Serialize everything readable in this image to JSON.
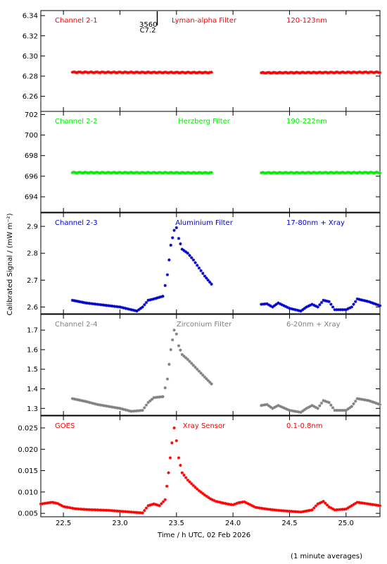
{
  "figure": {
    "ylabel": "Calibrated Signal / (mW m⁻²)",
    "xlabel": "Time / h UTC, 02 Feb 2026",
    "footnote": "(1 minute averages)",
    "marker": {
      "text": "3560",
      "subtext": "C7.2",
      "x": 23.33
    }
  },
  "chart_data": [
    {
      "type": "scatter",
      "channel": "Channel 2-1",
      "filter": "Lyman-alpha Filter",
      "band": "120-123nm",
      "color": "#ff0000",
      "ylim": [
        6.245,
        6.345
      ],
      "yticks": [
        "6.26",
        "6.28",
        "6.30",
        "6.32",
        "6.34"
      ],
      "xlim": [
        22.3,
        25.3
      ],
      "series": [
        {
          "x_start": 22.58,
          "x_end": 23.81,
          "y_start": 6.2838,
          "y_end": 6.2835
        },
        {
          "x_start": 24.25,
          "x_end": 25.3,
          "y_start": 6.2833,
          "y_end": 6.2838
        }
      ]
    },
    {
      "type": "scatter",
      "channel": "Channel 2-2",
      "filter": "Herzberg Filter",
      "band": "190-222nm",
      "color": "#00ee00",
      "ylim": [
        692.5,
        702.3
      ],
      "yticks": [
        "694",
        "696",
        "698",
        "700",
        "702"
      ],
      "xlim": [
        22.3,
        25.3
      ],
      "series": [
        {
          "x_start": 22.58,
          "x_end": 23.81,
          "y_start": 696.35,
          "y_end": 696.33
        },
        {
          "x_start": 24.25,
          "x_end": 25.3,
          "y_start": 696.33,
          "y_end": 696.35
        }
      ]
    },
    {
      "type": "scatter",
      "channel": "Channel 2-3",
      "filter": "Aluminium Filter",
      "band": "17-80nm + Xray",
      "color": "#0000cc",
      "ylim": [
        2.575,
        2.95
      ],
      "yticks": [
        "2.6",
        "2.7",
        "2.8",
        "2.9"
      ],
      "xlim": [
        22.3,
        25.3
      ],
      "x": [
        22.58,
        22.7,
        22.8,
        22.9,
        23.0,
        23.1,
        23.15,
        23.2,
        23.25,
        23.3,
        23.38,
        23.42,
        23.45,
        23.48,
        23.5,
        23.52,
        23.55,
        23.6,
        23.65,
        23.7,
        23.75,
        23.81,
        24.25,
        24.3,
        24.35,
        24.4,
        24.5,
        24.6,
        24.65,
        24.7,
        24.75,
        24.8,
        24.85,
        24.9,
        25.0,
        25.05,
        25.1,
        25.2,
        25.3
      ],
      "y": [
        2.625,
        2.615,
        2.61,
        2.605,
        2.6,
        2.59,
        2.585,
        2.6,
        2.625,
        2.63,
        2.64,
        2.72,
        2.83,
        2.885,
        2.895,
        2.855,
        2.815,
        2.8,
        2.775,
        2.745,
        2.715,
        2.685,
        2.61,
        2.612,
        2.6,
        2.615,
        2.595,
        2.585,
        2.6,
        2.61,
        2.6,
        2.625,
        2.62,
        2.59,
        2.59,
        2.6,
        2.63,
        2.62,
        2.605
      ]
    },
    {
      "type": "scatter",
      "channel": "Channel 2-4",
      "filter": "Zirconium Filter",
      "band": "6-20nm + Xray",
      "color": "#808080",
      "ylim": [
        1.265,
        1.78
      ],
      "yticks": [
        "1.3",
        "1.4",
        "1.5",
        "1.6",
        "1.7"
      ],
      "xlim": [
        22.3,
        25.3
      ],
      "x": [
        22.58,
        22.7,
        22.8,
        22.9,
        23.0,
        23.1,
        23.2,
        23.25,
        23.3,
        23.38,
        23.42,
        23.45,
        23.48,
        23.5,
        23.52,
        23.55,
        23.6,
        23.65,
        23.7,
        23.75,
        23.81,
        24.25,
        24.3,
        24.35,
        24.4,
        24.5,
        24.6,
        24.65,
        24.7,
        24.75,
        24.8,
        24.85,
        24.9,
        25.0,
        25.05,
        25.1,
        25.2,
        25.3
      ],
      "y": [
        1.35,
        1.335,
        1.32,
        1.31,
        1.3,
        1.285,
        1.29,
        1.33,
        1.355,
        1.36,
        1.45,
        1.6,
        1.7,
        1.68,
        1.62,
        1.575,
        1.55,
        1.52,
        1.49,
        1.46,
        1.425,
        1.315,
        1.32,
        1.3,
        1.315,
        1.29,
        1.28,
        1.3,
        1.315,
        1.3,
        1.34,
        1.33,
        1.29,
        1.29,
        1.31,
        1.35,
        1.34,
        1.32
      ]
    },
    {
      "type": "scatter",
      "channel": "GOES",
      "filter": "Xray Sensor",
      "band": "0.1-0.8nm",
      "color": "#ff0000",
      "ylim": [
        0.0042,
        0.0278
      ],
      "yticks": [
        "0.005",
        "0.010",
        "0.015",
        "0.020",
        "0.025"
      ],
      "xtick_values": [
        22.5,
        23.0,
        23.5,
        24.0,
        24.5,
        25.0
      ],
      "xticks": [
        "22.5",
        "23.0",
        "23.5",
        "24.0",
        "24.5",
        "25.0"
      ],
      "xlim": [
        22.3,
        25.3
      ],
      "x": [
        22.3,
        22.4,
        22.45,
        22.5,
        22.6,
        22.7,
        22.8,
        22.9,
        23.0,
        23.1,
        23.2,
        23.25,
        23.3,
        23.35,
        23.4,
        23.43,
        23.46,
        23.48,
        23.5,
        23.52,
        23.55,
        23.6,
        23.65,
        23.7,
        23.75,
        23.8,
        23.85,
        23.9,
        23.95,
        24.0,
        24.05,
        24.1,
        24.2,
        24.3,
        24.4,
        24.5,
        24.6,
        24.7,
        24.75,
        24.8,
        24.85,
        24.9,
        25.0,
        25.05,
        25.1,
        25.2,
        25.3
      ],
      "y": [
        0.0072,
        0.0076,
        0.0073,
        0.0066,
        0.0061,
        0.0059,
        0.0058,
        0.0057,
        0.0055,
        0.0053,
        0.0051,
        0.0068,
        0.0072,
        0.0068,
        0.0082,
        0.0145,
        0.0215,
        0.025,
        0.022,
        0.018,
        0.0145,
        0.0128,
        0.0115,
        0.0103,
        0.0093,
        0.0084,
        0.0078,
        0.0075,
        0.0072,
        0.007,
        0.0075,
        0.0077,
        0.0064,
        0.006,
        0.0057,
        0.0055,
        0.0053,
        0.0058,
        0.0072,
        0.0078,
        0.0065,
        0.0058,
        0.006,
        0.0068,
        0.0076,
        0.0072,
        0.0068
      ]
    }
  ]
}
